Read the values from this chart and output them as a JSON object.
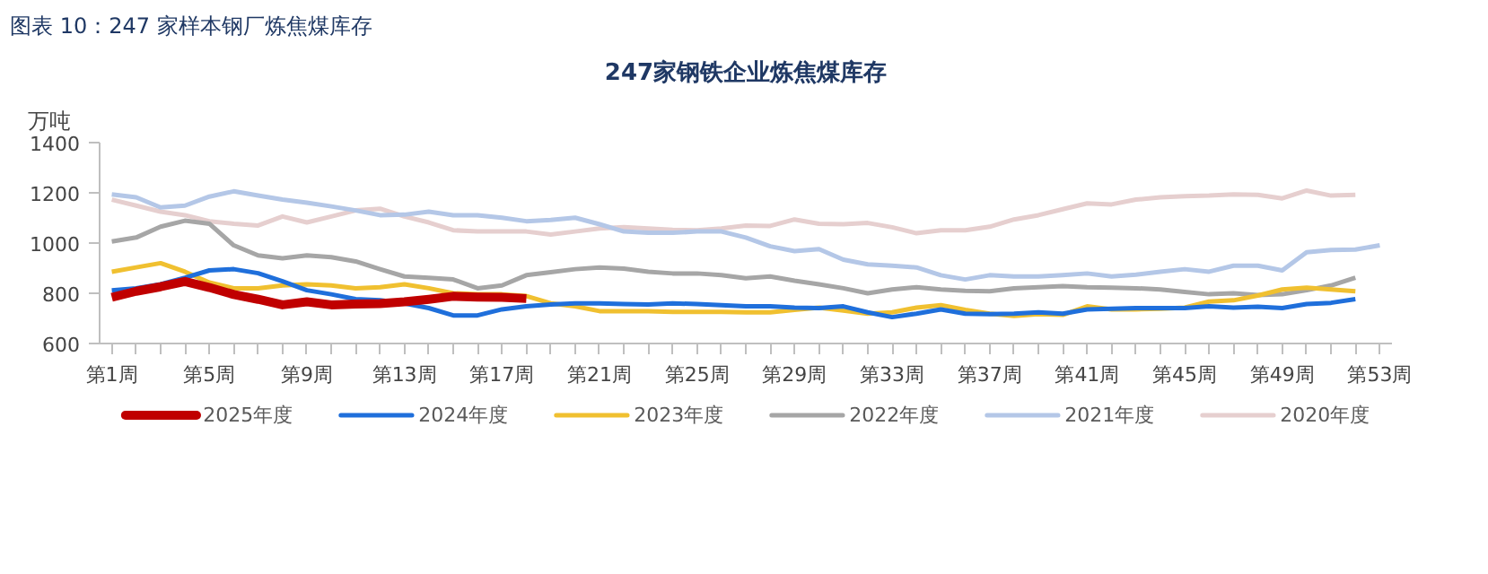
{
  "chart_data": {
    "type": "line",
    "title": "247家钢铁企业炼焦煤库存",
    "ylabel": "万吨",
    "annotations": [
      "图表 10：247 家样本钢厂炼焦煤库存"
    ],
    "categories": [
      "第1周",
      null,
      null,
      null,
      "第5周",
      null,
      null,
      null,
      "第9周",
      null,
      null,
      null,
      "第13周",
      null,
      null,
      null,
      "第17周",
      null,
      null,
      null,
      "第21周",
      null,
      null,
      null,
      "第25周",
      null,
      null,
      null,
      "第29周",
      null,
      null,
      null,
      "第33周",
      null,
      null,
      null,
      "第37周",
      null,
      null,
      null,
      "第41周",
      null,
      null,
      null,
      "第45周",
      null,
      null,
      null,
      "第49周",
      null,
      null,
      null,
      "第53周"
    ],
    "ylim": [
      600,
      1400
    ],
    "yticks": [
      600,
      800,
      1000,
      1200,
      1400
    ],
    "grid": false,
    "legend": "bottom",
    "marker": "none",
    "line_style": "solid",
    "series": [
      {
        "name": "2025年度",
        "color": "#c00000",
        "values": [
          784,
          808,
          826,
          847,
          823,
          795,
          776,
          754,
          766,
          754,
          757,
          759,
          766,
          776,
          788,
          785,
          784,
          779,
          null,
          null,
          null,
          null,
          null,
          null,
          null,
          null,
          null,
          null,
          null,
          null,
          null,
          null,
          null,
          null,
          null,
          null,
          null,
          null,
          null,
          null,
          null,
          null,
          null,
          null,
          null,
          null,
          null,
          null,
          null,
          null,
          null,
          null,
          null
        ]
      },
      {
        "name": "2024年度",
        "color": "#1f6fdb",
        "values": [
          812,
          820,
          836,
          862,
          891,
          896,
          880,
          848,
          812,
          796,
          777,
          772,
          760,
          741,
          712,
          712,
          736,
          748,
          755,
          760,
          760,
          757,
          755,
          760,
          757,
          753,
          748,
          748,
          743,
          741,
          748,
          724,
          705,
          719,
          736,
          719,
          717,
          719,
          724,
          719,
          736,
          738,
          741,
          741,
          741,
          748,
          743,
          746,
          741,
          757,
          762,
          777,
          null
        ]
      },
      {
        "name": "2023年度",
        "color": "#f0c030",
        "values": [
          886,
          903,
          920,
          886,
          843,
          820,
          820,
          831,
          836,
          831,
          820,
          824,
          836,
          820,
          800,
          796,
          796,
          789,
          760,
          748,
          729,
          729,
          729,
          726,
          726,
          726,
          724,
          724,
          734,
          743,
          731,
          719,
          724,
          743,
          753,
          734,
          719,
          710,
          717,
          714,
          748,
          736,
          736,
          738,
          743,
          767,
          772,
          791,
          815,
          822,
          815,
          808,
          null
        ]
      },
      {
        "name": "2022年度",
        "color": "#a6a6a6",
        "values": [
          1006,
          1022,
          1065,
          1089,
          1077,
          991,
          951,
          939,
          951,
          944,
          927,
          896,
          867,
          862,
          855,
          820,
          831,
          872,
          884,
          896,
          903,
          898,
          886,
          879,
          879,
          872,
          860,
          867,
          850,
          836,
          820,
          800,
          815,
          824,
          815,
          810,
          808,
          820,
          824,
          829,
          824,
          822,
          820,
          815,
          805,
          796,
          800,
          793,
          796,
          812,
          831,
          862,
          null
        ]
      },
      {
        "name": "2021年度",
        "color": "#b4c7e7",
        "values": [
          1194,
          1182,
          1142,
          1149,
          1185,
          1206,
          1189,
          1173,
          1161,
          1146,
          1130,
          1111,
          1113,
          1125,
          1111,
          1111,
          1101,
          1087,
          1092,
          1101,
          1075,
          1046,
          1041,
          1041,
          1046,
          1046,
          1022,
          987,
          968,
          976,
          934,
          915,
          910,
          903,
          872,
          855,
          872,
          867,
          867,
          872,
          879,
          867,
          874,
          886,
          896,
          886,
          910,
          910,
          891,
          963,
          972,
          974,
          991
        ]
      },
      {
        "name": "2020年度",
        "color": "#e6cfcf",
        "values": [
          1173,
          1149,
          1125,
          1111,
          1087,
          1077,
          1070,
          1106,
          1082,
          1106,
          1130,
          1137,
          1106,
          1082,
          1051,
          1046,
          1046,
          1046,
          1034,
          1046,
          1058,
          1063,
          1058,
          1053,
          1051,
          1058,
          1070,
          1068,
          1094,
          1077,
          1075,
          1080,
          1063,
          1039,
          1051,
          1051,
          1065,
          1094,
          1111,
          1135,
          1158,
          1154,
          1173,
          1182,
          1187,
          1189,
          1194,
          1192,
          1178,
          1209,
          1189,
          1192,
          null
        ]
      }
    ]
  }
}
